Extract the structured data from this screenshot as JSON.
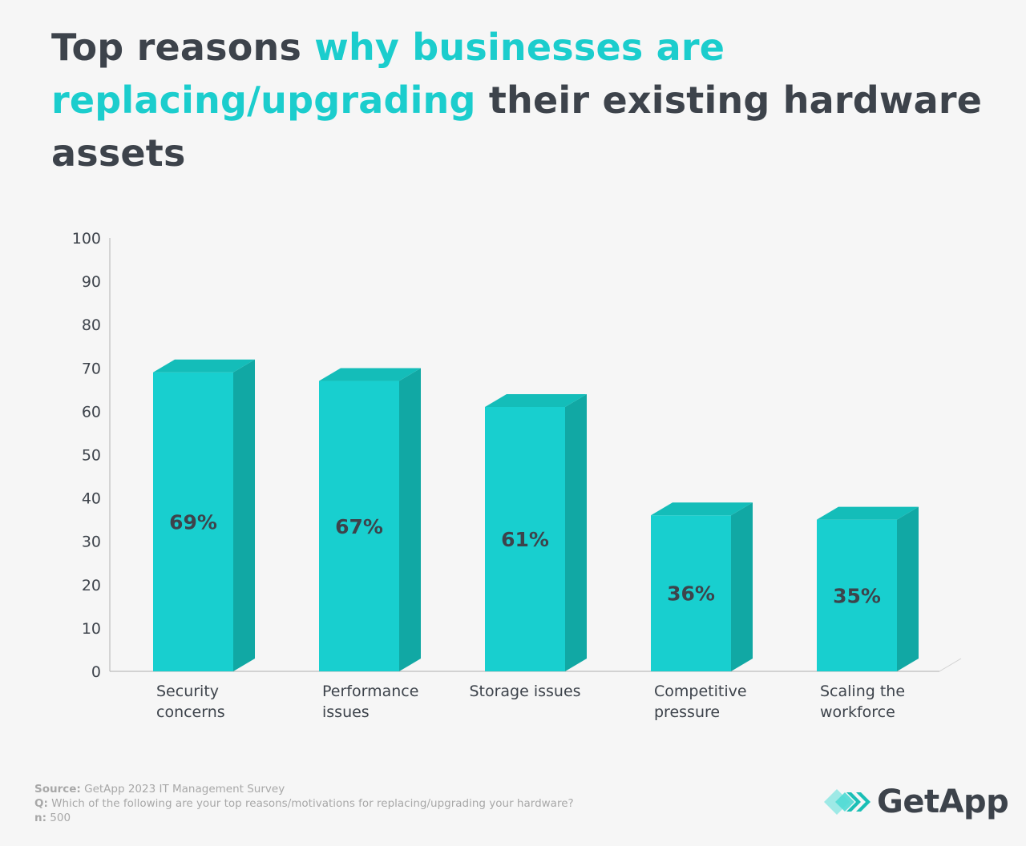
{
  "title": {
    "part1": "Top reasons ",
    "highlight": "why businesses are replacing/upgrading",
    "part2": " their existing hardware assets"
  },
  "colors": {
    "bar_front": "#18cfcf",
    "bar_side": "#11a8a4",
    "bar_top": "#14bdb9",
    "text": "#3d434b",
    "accent": "#1bcdcd"
  },
  "chart_data": {
    "type": "bar",
    "categories": [
      [
        "Security",
        "concerns"
      ],
      [
        "Performance",
        "issues"
      ],
      [
        "Storage issues"
      ],
      [
        "Competitive",
        "pressure"
      ],
      [
        "Scaling the",
        "workforce"
      ]
    ],
    "values": [
      69,
      67,
      61,
      36,
      35
    ],
    "data_labels": [
      "69%",
      "67%",
      "61%",
      "36%",
      "35%"
    ],
    "ylim": [
      0,
      100
    ],
    "yticks": [
      0,
      10,
      20,
      30,
      40,
      50,
      60,
      70,
      80,
      90,
      100
    ],
    "grid": false,
    "style": "3d"
  },
  "footer": {
    "source_label": "Source:",
    "source": " GetApp 2023 IT Management Survey",
    "q_label": "Q:",
    "question": " Which of the following are your top reasons/motivations for replacing/upgrading your hardware?",
    "n_label": "n:",
    "n": " 500"
  },
  "logo": {
    "text": "GetApp",
    "icon": "getapp-chevrons-icon"
  }
}
